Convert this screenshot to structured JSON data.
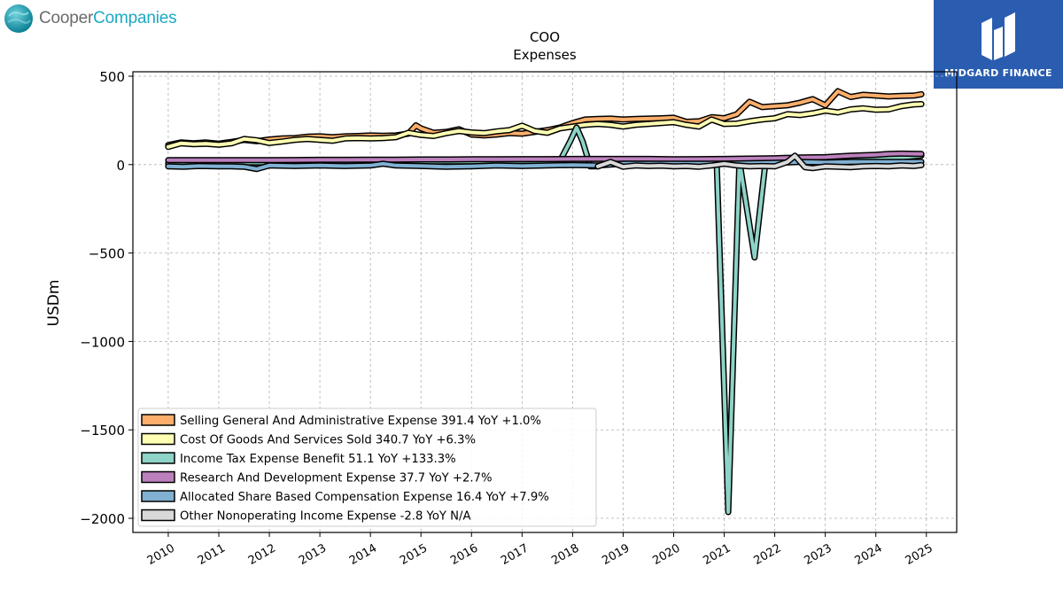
{
  "brand": {
    "company_first": "Cooper",
    "company_second": "Companies",
    "watermark": "MIDGARD FINANCE"
  },
  "chart_data": {
    "type": "line",
    "title": "COO",
    "subtitle": "Expenses",
    "ylabel": "USDm",
    "xlabel": "",
    "xlim": [
      2009.3,
      2025.6
    ],
    "ylim": [
      -2080,
      525
    ],
    "yticks": [
      500,
      0,
      -500,
      -1000,
      -1500,
      -2000
    ],
    "ytick_labels": [
      "500",
      "0",
      "−500",
      "−1000",
      "−1500",
      "−2000"
    ],
    "xticks": [
      2010,
      2011,
      2012,
      2013,
      2014,
      2015,
      2016,
      2017,
      2018,
      2019,
      2020,
      2021,
      2022,
      2023,
      2024,
      2025
    ],
    "xtick_labels": [
      "2010",
      "2011",
      "2012",
      "2013",
      "2014",
      "2015",
      "2016",
      "2017",
      "2018",
      "2019",
      "2020",
      "2021",
      "2022",
      "2023",
      "2024",
      "2025"
    ],
    "grid": true,
    "legend_position": "lower-left",
    "series": [
      {
        "name": "Selling General And Administrative Expense",
        "legend": "Selling General And Administrative Expense  391.4 YoY +1.0%",
        "color": "#fdae6b",
        "points": [
          [
            2010.0,
            110
          ],
          [
            2010.25,
            125
          ],
          [
            2010.5,
            120
          ],
          [
            2010.75,
            125
          ],
          [
            2011.0,
            118
          ],
          [
            2011.25,
            128
          ],
          [
            2011.5,
            140
          ],
          [
            2011.75,
            132
          ],
          [
            2012.0,
            142
          ],
          [
            2012.25,
            148
          ],
          [
            2012.5,
            150
          ],
          [
            2012.75,
            158
          ],
          [
            2013.0,
            160
          ],
          [
            2013.25,
            155
          ],
          [
            2013.5,
            160
          ],
          [
            2013.75,
            162
          ],
          [
            2014.0,
            165
          ],
          [
            2014.25,
            163
          ],
          [
            2014.5,
            165
          ],
          [
            2014.75,
            175
          ],
          [
            2014.9,
            222
          ],
          [
            2015.0,
            205
          ],
          [
            2015.25,
            180
          ],
          [
            2015.5,
            185
          ],
          [
            2015.75,
            200
          ],
          [
            2016.0,
            170
          ],
          [
            2016.25,
            165
          ],
          [
            2016.5,
            170
          ],
          [
            2016.75,
            178
          ],
          [
            2017.0,
            175
          ],
          [
            2017.25,
            185
          ],
          [
            2017.5,
            195
          ],
          [
            2017.75,
            210
          ],
          [
            2018.0,
            235
          ],
          [
            2018.25,
            255
          ],
          [
            2018.5,
            258
          ],
          [
            2018.75,
            260
          ],
          [
            2019.0,
            255
          ],
          [
            2019.25,
            258
          ],
          [
            2019.5,
            260
          ],
          [
            2019.75,
            262
          ],
          [
            2020.0,
            265
          ],
          [
            2020.25,
            242
          ],
          [
            2020.5,
            245
          ],
          [
            2020.75,
            268
          ],
          [
            2021.0,
            262
          ],
          [
            2021.25,
            285
          ],
          [
            2021.5,
            355
          ],
          [
            2021.75,
            325
          ],
          [
            2022.0,
            330
          ],
          [
            2022.25,
            335
          ],
          [
            2022.5,
            350
          ],
          [
            2022.75,
            370
          ],
          [
            2023.0,
            335
          ],
          [
            2023.25,
            415
          ],
          [
            2023.5,
            382
          ],
          [
            2023.75,
            395
          ],
          [
            2024.0,
            390
          ],
          [
            2024.25,
            385
          ],
          [
            2024.5,
            388
          ],
          [
            2024.75,
            390
          ],
          [
            2024.9,
            398
          ]
        ]
      },
      {
        "name": "Cost Of Goods And Services Sold",
        "legend": "Cost Of Goods And Services Sold  340.7 YoY +6.3%",
        "color": "#ffffb3",
        "points": [
          [
            2010.0,
            100
          ],
          [
            2010.25,
            120
          ],
          [
            2010.5,
            115
          ],
          [
            2010.75,
            118
          ],
          [
            2011.0,
            112
          ],
          [
            2011.25,
            120
          ],
          [
            2011.5,
            145
          ],
          [
            2011.75,
            138
          ],
          [
            2012.0,
            122
          ],
          [
            2012.25,
            130
          ],
          [
            2012.5,
            140
          ],
          [
            2012.75,
            145
          ],
          [
            2013.0,
            140
          ],
          [
            2013.25,
            135
          ],
          [
            2013.5,
            148
          ],
          [
            2013.75,
            150
          ],
          [
            2014.0,
            148
          ],
          [
            2014.25,
            150
          ],
          [
            2014.5,
            155
          ],
          [
            2014.75,
            180
          ],
          [
            2015.0,
            168
          ],
          [
            2015.25,
            162
          ],
          [
            2015.5,
            178
          ],
          [
            2015.75,
            190
          ],
          [
            2016.0,
            182
          ],
          [
            2016.25,
            178
          ],
          [
            2016.5,
            188
          ],
          [
            2016.75,
            195
          ],
          [
            2017.0,
            220
          ],
          [
            2017.25,
            190
          ],
          [
            2017.5,
            180
          ],
          [
            2017.75,
            205
          ],
          [
            2018.0,
            215
          ],
          [
            2018.25,
            225
          ],
          [
            2018.5,
            230
          ],
          [
            2018.75,
            225
          ],
          [
            2019.0,
            215
          ],
          [
            2019.25,
            225
          ],
          [
            2019.5,
            230
          ],
          [
            2019.75,
            235
          ],
          [
            2020.0,
            240
          ],
          [
            2020.25,
            225
          ],
          [
            2020.5,
            215
          ],
          [
            2020.75,
            255
          ],
          [
            2021.0,
            230
          ],
          [
            2021.25,
            232
          ],
          [
            2021.5,
            245
          ],
          [
            2021.75,
            255
          ],
          [
            2022.0,
            262
          ],
          [
            2022.25,
            285
          ],
          [
            2022.5,
            280
          ],
          [
            2022.75,
            290
          ],
          [
            2023.0,
            305
          ],
          [
            2023.25,
            295
          ],
          [
            2023.5,
            312
          ],
          [
            2023.75,
            318
          ],
          [
            2024.0,
            310
          ],
          [
            2024.25,
            312
          ],
          [
            2024.5,
            330
          ],
          [
            2024.75,
            340
          ],
          [
            2024.9,
            342
          ]
        ]
      },
      {
        "name": "Income Tax Expense Benefit",
        "legend": "Income Tax Expense Benefit  51.1 YoY +133.3%",
        "color": "#8dd3c7",
        "points": [
          [
            2010.0,
            8
          ],
          [
            2010.5,
            10
          ],
          [
            2011.0,
            10
          ],
          [
            2011.5,
            12
          ],
          [
            2012.0,
            12
          ],
          [
            2012.5,
            13
          ],
          [
            2013.0,
            14
          ],
          [
            2013.5,
            15
          ],
          [
            2014.0,
            16
          ],
          [
            2014.5,
            16
          ],
          [
            2015.0,
            17
          ],
          [
            2015.5,
            18
          ],
          [
            2016.0,
            18
          ],
          [
            2016.5,
            19
          ],
          [
            2017.0,
            20
          ],
          [
            2017.5,
            20
          ],
          [
            2017.75,
            20
          ],
          [
            2017.95,
            130
          ],
          [
            2018.08,
            210
          ],
          [
            2018.2,
            130
          ],
          [
            2018.35,
            -10
          ],
          [
            2018.5,
            -10
          ],
          [
            2018.75,
            15
          ],
          [
            2019.0,
            18
          ],
          [
            2019.5,
            20
          ],
          [
            2020.0,
            20
          ],
          [
            2020.5,
            20
          ],
          [
            2020.75,
            20
          ],
          [
            2020.85,
            20
          ],
          [
            2021.08,
            -1965
          ],
          [
            2021.3,
            20
          ],
          [
            2021.6,
            -525
          ],
          [
            2021.82,
            20
          ],
          [
            2022.0,
            20
          ],
          [
            2022.5,
            20
          ],
          [
            2023.0,
            25
          ],
          [
            2023.5,
            28
          ],
          [
            2024.0,
            30
          ],
          [
            2024.5,
            40
          ],
          [
            2024.9,
            51
          ]
        ]
      },
      {
        "name": "Research And Development Expense",
        "legend": "Research And Development Expense  37.7 YoY +2.7%",
        "color": "#bc80bd",
        "points": [
          [
            2010.0,
            25
          ],
          [
            2010.5,
            25
          ],
          [
            2011.0,
            25
          ],
          [
            2011.25,
            25
          ],
          [
            2011.5,
            25
          ],
          [
            2012.0,
            25
          ],
          [
            2012.5,
            26
          ],
          [
            2013.0,
            27
          ],
          [
            2013.5,
            27
          ],
          [
            2014.0,
            28
          ],
          [
            2014.5,
            28
          ],
          [
            2015.0,
            29
          ],
          [
            2015.5,
            29
          ],
          [
            2016.0,
            30
          ],
          [
            2016.5,
            30
          ],
          [
            2017.0,
            31
          ],
          [
            2017.5,
            31
          ],
          [
            2018.0,
            32
          ],
          [
            2018.5,
            32
          ],
          [
            2019.0,
            32
          ],
          [
            2019.5,
            32
          ],
          [
            2020.0,
            30
          ],
          [
            2020.5,
            31
          ],
          [
            2021.0,
            32
          ],
          [
            2021.5,
            34
          ],
          [
            2022.0,
            36
          ],
          [
            2022.5,
            40
          ],
          [
            2023.0,
            42
          ],
          [
            2023.5,
            50
          ],
          [
            2024.0,
            55
          ],
          [
            2024.25,
            60
          ],
          [
            2024.5,
            62
          ],
          [
            2024.9,
            60
          ]
        ]
      },
      {
        "name": "Allocated Share Based Compensation Expense",
        "legend": "Allocated Share Based Compensation Expense  16.4 YoY +7.9%",
        "color": "#80b1d3",
        "points": [
          [
            2010.0,
            -10
          ],
          [
            2010.3,
            -12
          ],
          [
            2010.6,
            -8
          ],
          [
            2011.0,
            -10
          ],
          [
            2011.25,
            -10
          ],
          [
            2011.5,
            -12
          ],
          [
            2011.75,
            -25
          ],
          [
            2012.0,
            -5
          ],
          [
            2012.5,
            -8
          ],
          [
            2013.0,
            -5
          ],
          [
            2013.5,
            -8
          ],
          [
            2014.0,
            -5
          ],
          [
            2014.25,
            5
          ],
          [
            2014.5,
            -5
          ],
          [
            2015.0,
            -8
          ],
          [
            2015.5,
            -12
          ],
          [
            2016.0,
            -10
          ],
          [
            2016.5,
            -5
          ],
          [
            2017.0,
            -8
          ],
          [
            2017.5,
            -5
          ],
          [
            2018.0,
            -2
          ],
          [
            2018.5,
            -5
          ],
          [
            2019.0,
            5
          ],
          [
            2019.5,
            5
          ],
          [
            2020.0,
            5
          ],
          [
            2020.5,
            5
          ],
          [
            2021.0,
            5
          ],
          [
            2021.5,
            8
          ],
          [
            2022.0,
            10
          ],
          [
            2022.25,
            12
          ],
          [
            2022.5,
            15
          ],
          [
            2023.0,
            12
          ],
          [
            2023.5,
            15
          ],
          [
            2024.0,
            15
          ],
          [
            2024.5,
            15
          ],
          [
            2024.9,
            16
          ]
        ]
      },
      {
        "name": "Other Nonoperating Income Expense",
        "legend": "Other Nonoperating Income Expense  -2.8 YoY N/A",
        "color": "#d9d9d9",
        "points": [
          [
            2018.5,
            -10
          ],
          [
            2018.75,
            15
          ],
          [
            2019.0,
            -12
          ],
          [
            2019.25,
            -5
          ],
          [
            2019.5,
            -8
          ],
          [
            2019.75,
            -6
          ],
          [
            2020.0,
            -10
          ],
          [
            2020.25,
            -8
          ],
          [
            2020.5,
            -12
          ],
          [
            2020.75,
            -5
          ],
          [
            2021.0,
            5
          ],
          [
            2021.25,
            -5
          ],
          [
            2021.5,
            -10
          ],
          [
            2021.75,
            -8
          ],
          [
            2022.0,
            -10
          ],
          [
            2022.25,
            15
          ],
          [
            2022.4,
            50
          ],
          [
            2022.6,
            -15
          ],
          [
            2022.75,
            -20
          ],
          [
            2023.0,
            -10
          ],
          [
            2023.25,
            -12
          ],
          [
            2023.5,
            -15
          ],
          [
            2023.75,
            -10
          ],
          [
            2024.0,
            -8
          ],
          [
            2024.25,
            -10
          ],
          [
            2024.5,
            -5
          ],
          [
            2024.75,
            -8
          ],
          [
            2024.9,
            -3
          ]
        ]
      }
    ]
  }
}
